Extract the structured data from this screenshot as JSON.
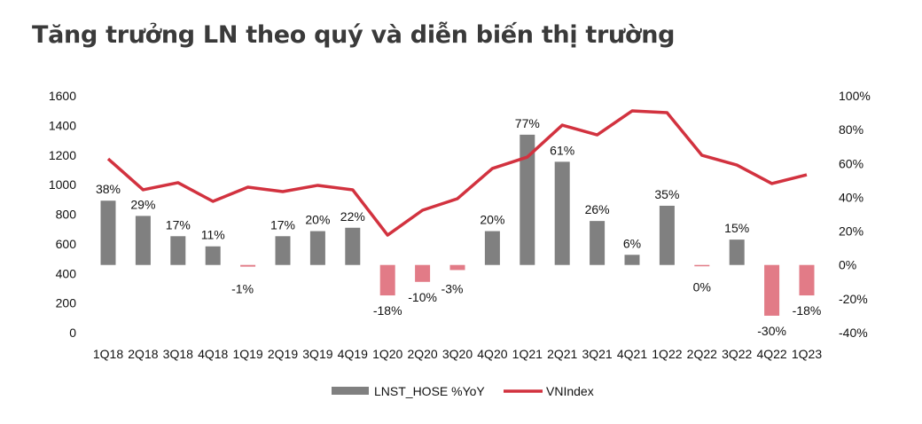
{
  "chart_data": {
    "type": "bar+line",
    "title": "Tăng trưởng LN theo quý và diễn biến thị trường",
    "categories": [
      "1Q18",
      "2Q18",
      "3Q18",
      "4Q18",
      "1Q19",
      "2Q19",
      "3Q19",
      "4Q19",
      "1Q20",
      "2Q20",
      "3Q20",
      "4Q20",
      "1Q21",
      "2Q21",
      "3Q21",
      "4Q21",
      "1Q22",
      "2Q22",
      "3Q22",
      "4Q22",
      "1Q23"
    ],
    "series": [
      {
        "name": "LNST_HOSE %YoY",
        "type": "bar",
        "axis": "right",
        "color": "#808080",
        "negative_color": "#e27b87",
        "values": [
          38,
          29,
          17,
          11,
          -1,
          17,
          20,
          22,
          -18,
          -10,
          -3,
          20,
          77,
          61,
          26,
          6,
          35,
          0,
          15,
          -30,
          -18
        ],
        "labels": [
          "38%",
          "29%",
          "17%",
          "11%",
          "-1%",
          "17%",
          "20%",
          "22%",
          "-18%",
          "-10%",
          "-3%",
          "20%",
          "77%",
          "61%",
          "26%",
          "6%",
          "35%",
          "0%",
          "15%",
          "-30%",
          "-18%"
        ]
      },
      {
        "name": "VNIndex",
        "type": "line",
        "axis": "left",
        "color": "#d2323f",
        "values": [
          1174,
          965,
          1013,
          887,
          983,
          953,
          995,
          965,
          659,
          827,
          905,
          1109,
          1186,
          1402,
          1336,
          1498,
          1486,
          1198,
          1132,
          1007,
          1066
        ]
      }
    ],
    "left_axis": {
      "range": [
        0,
        1600
      ],
      "ticks": [
        "0",
        "200",
        "400",
        "600",
        "800",
        "1000",
        "1200",
        "1400",
        "1600"
      ]
    },
    "right_axis": {
      "range": [
        -40,
        100
      ],
      "ticks": [
        "-40%",
        "-20%",
        "0%",
        "20%",
        "40%",
        "60%",
        "80%",
        "100%"
      ]
    },
    "grid": false,
    "legend": "bottom"
  }
}
